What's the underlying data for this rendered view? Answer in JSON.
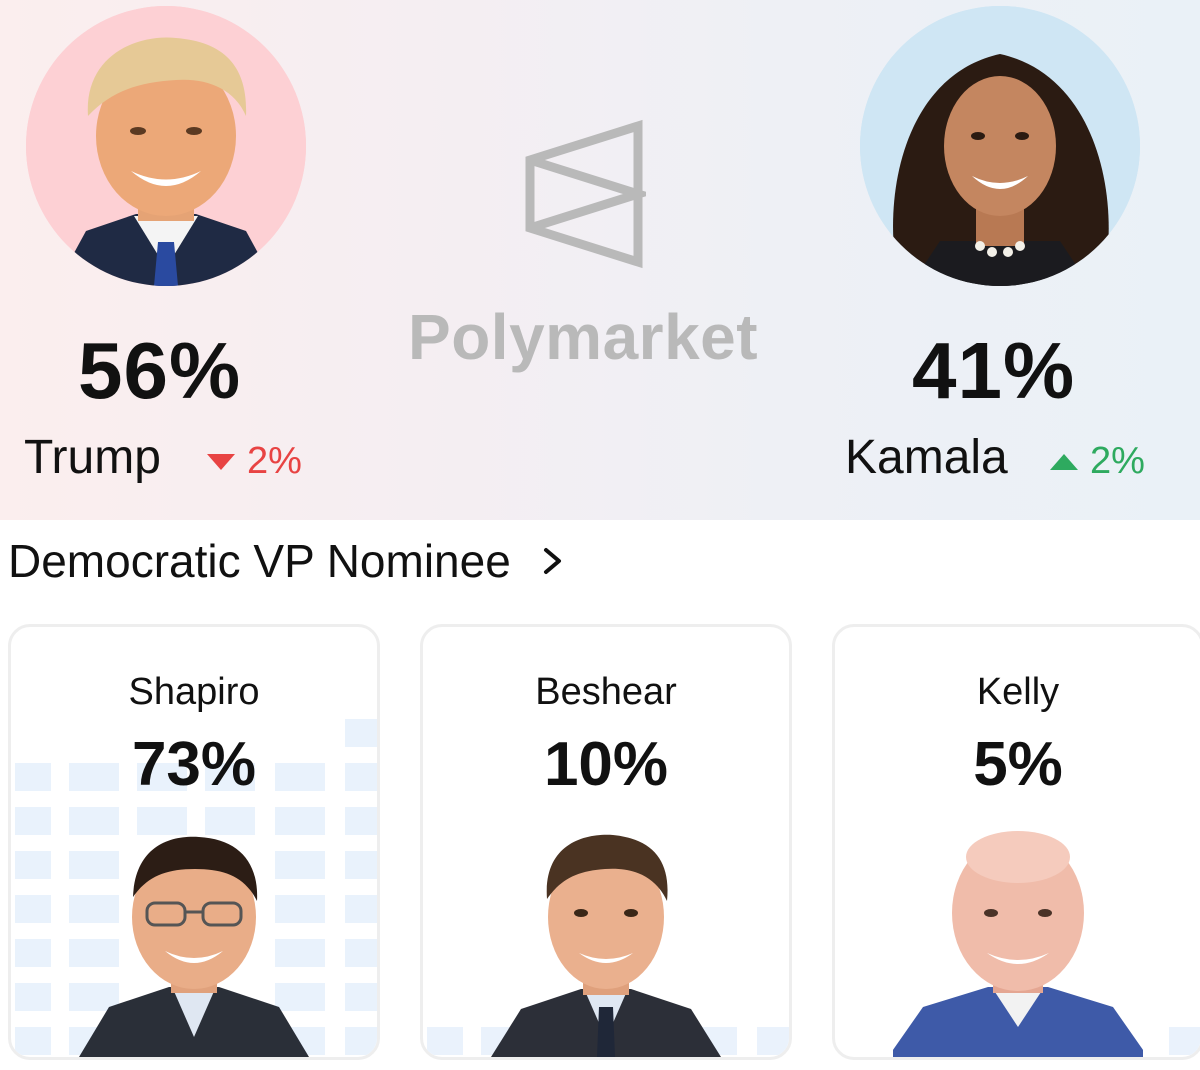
{
  "brand": {
    "name": "Polymarket"
  },
  "presidential": {
    "trump": {
      "name": "Trump",
      "percent": "56%",
      "change": "2%",
      "direction": "down",
      "bg_color": "#fdd0d4"
    },
    "kamala": {
      "name": "Kamala",
      "percent": "41%",
      "change": "2%",
      "direction": "up",
      "bg_color": "#cfe6f4"
    }
  },
  "colors": {
    "down": "#e84343",
    "up": "#2eaa5f"
  },
  "vp_section": {
    "title": "Democratic VP Nominee",
    "candidates": [
      {
        "name": "Shapiro",
        "percent": "73%",
        "chance": 73
      },
      {
        "name": "Beshear",
        "percent": "10%",
        "chance": 10
      },
      {
        "name": "Kelly",
        "percent": "5%",
        "chance": 5
      }
    ]
  }
}
